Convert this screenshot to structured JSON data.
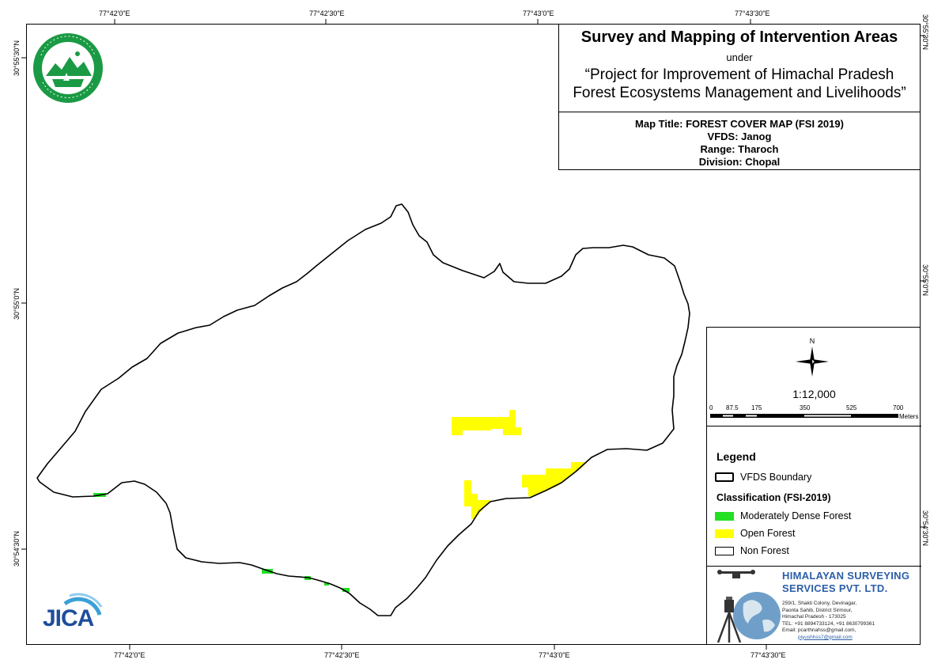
{
  "title": {
    "main": "Survey and Mapping of Intervention Areas",
    "under": "under",
    "project_line1": "“Project for Improvement of Himachal Pradesh",
    "project_line2": "Forest Ecosystems Management and Livelihoods”"
  },
  "map_info": {
    "title": "Map Title: FOREST COVER MAP (FSI 2019)",
    "vfds": "VFDS: Janog",
    "range": "Range: Tharoch",
    "division": "Division: Chopal"
  },
  "grid": {
    "top_lon": [
      "77°42'0\"E",
      "77°42'30\"E",
      "77°43'0\"E",
      "77°43'30\"E"
    ],
    "bottom_lon": [
      "77°42'0\"E",
      "77°42'30\"E",
      "77°43'0\"E",
      "77°43'30\"E"
    ],
    "left_lat": [
      "30°55'30\"N",
      "30°55'0\"N",
      "30°54'30\"N"
    ],
    "right_lat": [
      "30°55'30\"N",
      "30°55'0\"N",
      "30°54'30\"N"
    ]
  },
  "north_arrow": {
    "label": "N"
  },
  "scale": {
    "ratio": "1:12,000",
    "ticks": [
      "0",
      "87.5",
      "175",
      "350",
      "525",
      "700"
    ],
    "unit": "Meters"
  },
  "legend": {
    "heading": "Legend",
    "boundary": "VFDS Boundary",
    "classification_heading": "Classification (FSI-2019)",
    "items": [
      {
        "label": "Moderately Dense Forest",
        "color": "#22e022"
      },
      {
        "label": "Open Forest",
        "color": "#ffff00"
      },
      {
        "label": "Non Forest",
        "color": "#ffffff"
      }
    ]
  },
  "company": {
    "name_line1": "HIMALAYAN SURVEYING",
    "name_line2": "SERVICES PVT. LTD.",
    "address": [
      "259/1, Shakti Colony, Devinagar,",
      "Paonta Sahib, District Sirmour,",
      "Himachal Pradesh - 173025",
      "TEL: +91 8894733124, +91 8630799361",
      "Email: pcarthnahss@gmail.com,",
      "piyushhss7@gmail.com"
    ]
  },
  "logos": {
    "forest_dept": "forest-department-emblem",
    "jica": "JICA"
  }
}
